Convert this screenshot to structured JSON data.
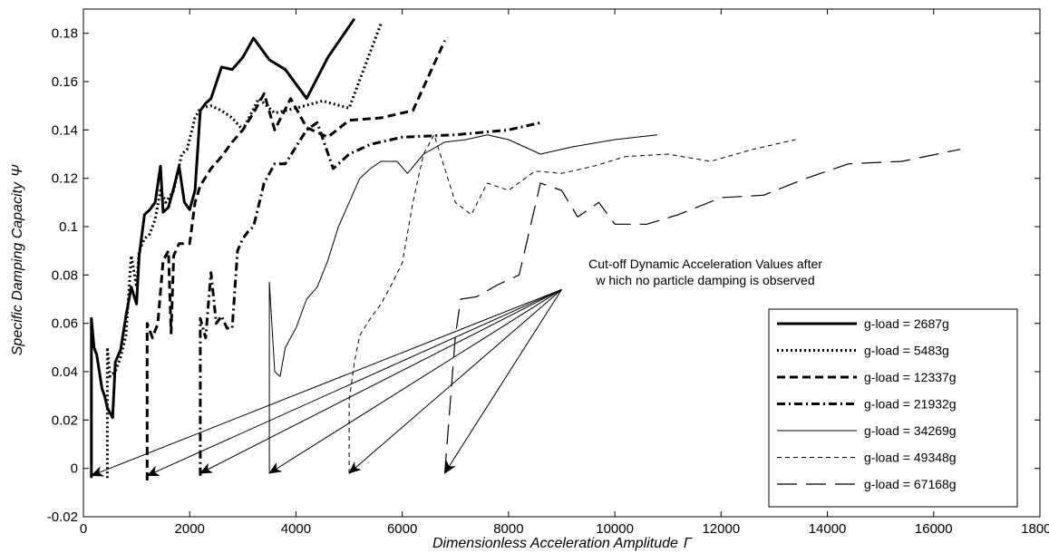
{
  "chart_data": {
    "type": "line",
    "xlabel": "Dimensionless Acceleration Amplitude",
    "xlabel_symbol": "Γ",
    "ylabel": "Specific Damping Capacity",
    "ylabel_symbol": "Ψ",
    "xlim": [
      0,
      18000
    ],
    "ylim": [
      -0.02,
      0.19
    ],
    "xticks": [
      0,
      2000,
      4000,
      6000,
      8000,
      10000,
      12000,
      14000,
      16000,
      18000
    ],
    "yticks": [
      -0.02,
      0,
      0.02,
      0.04,
      0.06,
      0.08,
      0.1,
      0.12,
      0.14,
      0.16,
      0.18
    ],
    "xtick_labels": [
      "0",
      "2000",
      "4000",
      "6000",
      "8000",
      "10000",
      "12000",
      "14000",
      "16000",
      "18000"
    ],
    "ytick_labels": [
      "-0.02",
      "0",
      "0.02",
      "0.04",
      "0.06",
      "0.08",
      "0.1",
      "0.12",
      "0.14",
      "0.16",
      "0.18"
    ],
    "grid": false,
    "legend_position": "bottom-right",
    "annotation": {
      "lines": [
        "Cut-off Dynamic Acceleration Values after",
        "w hich no particle damping is observed"
      ],
      "arrow_origin": [
        9000,
        0.074
      ],
      "arrow_targets": [
        [
          150,
          -0.003
        ],
        [
          1200,
          -0.003
        ],
        [
          2200,
          -0.002
        ],
        [
          3500,
          -0.002
        ],
        [
          5000,
          -0.002
        ],
        [
          6800,
          -0.002
        ]
      ]
    },
    "series": [
      {
        "name": "g-load = 2687g",
        "style": "thick-solid",
        "stroke": "#000000",
        "points": [
          [
            150,
            -0.004
          ],
          [
            150,
            0.062
          ],
          [
            200,
            0.05
          ],
          [
            250,
            0.047
          ],
          [
            300,
            0.04
          ],
          [
            350,
            0.033
          ],
          [
            400,
            0.03
          ],
          [
            450,
            0.025
          ],
          [
            500,
            0.023
          ],
          [
            550,
            0.021
          ],
          [
            600,
            0.044
          ],
          [
            700,
            0.049
          ],
          [
            800,
            0.063
          ],
          [
            900,
            0.075
          ],
          [
            1000,
            0.068
          ],
          [
            1050,
            0.088
          ],
          [
            1150,
            0.105
          ],
          [
            1250,
            0.107
          ],
          [
            1350,
            0.11
          ],
          [
            1450,
            0.125
          ],
          [
            1500,
            0.106
          ],
          [
            1600,
            0.108
          ],
          [
            1700,
            0.116
          ],
          [
            1800,
            0.125
          ],
          [
            1900,
            0.11
          ],
          [
            2000,
            0.107
          ],
          [
            2100,
            0.115
          ],
          [
            2200,
            0.148
          ],
          [
            2300,
            0.151
          ],
          [
            2400,
            0.153
          ],
          [
            2600,
            0.166
          ],
          [
            2800,
            0.165
          ],
          [
            3000,
            0.17
          ],
          [
            3200,
            0.178
          ],
          [
            3500,
            0.169
          ],
          [
            3800,
            0.165
          ],
          [
            4200,
            0.153
          ],
          [
            4600,
            0.17
          ],
          [
            5100,
            0.186
          ]
        ]
      },
      {
        "name": "g-load = 5483g",
        "style": "thick-dotted",
        "stroke": "#000000",
        "points": [
          [
            450,
            -0.004
          ],
          [
            450,
            0.05
          ],
          [
            500,
            0.038
          ],
          [
            600,
            0.04
          ],
          [
            700,
            0.046
          ],
          [
            800,
            0.055
          ],
          [
            900,
            0.088
          ],
          [
            1000,
            0.075
          ],
          [
            1050,
            0.09
          ],
          [
            1150,
            0.095
          ],
          [
            1250,
            0.097
          ],
          [
            1350,
            0.103
          ],
          [
            1450,
            0.115
          ],
          [
            1550,
            0.11
          ],
          [
            1700,
            0.115
          ],
          [
            1850,
            0.13
          ],
          [
            1950,
            0.132
          ],
          [
            2100,
            0.145
          ],
          [
            2200,
            0.149
          ],
          [
            2400,
            0.15
          ],
          [
            2600,
            0.148
          ],
          [
            2800,
            0.145
          ],
          [
            3000,
            0.14
          ],
          [
            3300,
            0.153
          ],
          [
            3600,
            0.147
          ],
          [
            4000,
            0.149
          ],
          [
            4500,
            0.152
          ],
          [
            5000,
            0.149
          ],
          [
            5600,
            0.184
          ]
        ]
      },
      {
        "name": "g-load = 12337g",
        "style": "thick-dashed",
        "stroke": "#000000",
        "points": [
          [
            1200,
            -0.005
          ],
          [
            1200,
            0.06
          ],
          [
            1300,
            0.054
          ],
          [
            1400,
            0.06
          ],
          [
            1500,
            0.086
          ],
          [
            1600,
            0.09
          ],
          [
            1650,
            0.056
          ],
          [
            1700,
            0.088
          ],
          [
            1800,
            0.093
          ],
          [
            2000,
            0.093
          ],
          [
            2100,
            0.11
          ],
          [
            2200,
            0.117
          ],
          [
            2400,
            0.124
          ],
          [
            2600,
            0.129
          ],
          [
            2800,
            0.135
          ],
          [
            3000,
            0.14
          ],
          [
            3200,
            0.147
          ],
          [
            3400,
            0.155
          ],
          [
            3600,
            0.14
          ],
          [
            3900,
            0.153
          ],
          [
            4200,
            0.141
          ],
          [
            4600,
            0.137
          ],
          [
            5000,
            0.144
          ],
          [
            5600,
            0.145
          ],
          [
            6200,
            0.148
          ],
          [
            6800,
            0.177
          ]
        ]
      },
      {
        "name": "g-load = 21932g",
        "style": "thick-dashdot",
        "stroke": "#000000",
        "points": [
          [
            2200,
            -0.003
          ],
          [
            2200,
            0.062
          ],
          [
            2300,
            0.054
          ],
          [
            2400,
            0.081
          ],
          [
            2500,
            0.06
          ],
          [
            2600,
            0.063
          ],
          [
            2700,
            0.058
          ],
          [
            2800,
            0.058
          ],
          [
            2900,
            0.09
          ],
          [
            3000,
            0.095
          ],
          [
            3100,
            0.098
          ],
          [
            3200,
            0.1
          ],
          [
            3400,
            0.118
          ],
          [
            3600,
            0.126
          ],
          [
            3800,
            0.126
          ],
          [
            4000,
            0.133
          ],
          [
            4200,
            0.14
          ],
          [
            4400,
            0.143
          ],
          [
            4700,
            0.124
          ],
          [
            5000,
            0.13
          ],
          [
            5400,
            0.134
          ],
          [
            6000,
            0.137
          ],
          [
            7000,
            0.138
          ],
          [
            8000,
            0.14
          ],
          [
            8600,
            0.143
          ]
        ]
      },
      {
        "name": "g-load = 34269g",
        "style": "thin-solid",
        "stroke": "#000000",
        "points": [
          [
            3500,
            -0.002
          ],
          [
            3500,
            0.077
          ],
          [
            3600,
            0.04
          ],
          [
            3700,
            0.038
          ],
          [
            3800,
            0.05
          ],
          [
            4000,
            0.058
          ],
          [
            4200,
            0.07
          ],
          [
            4400,
            0.075
          ],
          [
            4600,
            0.086
          ],
          [
            4800,
            0.1
          ],
          [
            5000,
            0.11
          ],
          [
            5200,
            0.12
          ],
          [
            5400,
            0.124
          ],
          [
            5600,
            0.127
          ],
          [
            5900,
            0.127
          ],
          [
            6100,
            0.122
          ],
          [
            6400,
            0.13
          ],
          [
            6800,
            0.135
          ],
          [
            7200,
            0.136
          ],
          [
            7600,
            0.138
          ],
          [
            8000,
            0.136
          ],
          [
            8600,
            0.13
          ],
          [
            9200,
            0.133
          ],
          [
            10000,
            0.136
          ],
          [
            10800,
            0.138
          ]
        ]
      },
      {
        "name": "g-load = 49348g",
        "style": "thin-dashed",
        "stroke": "#000000",
        "points": [
          [
            5000,
            -0.002
          ],
          [
            5000,
            0.028
          ],
          [
            5100,
            0.044
          ],
          [
            5200,
            0.055
          ],
          [
            5400,
            0.062
          ],
          [
            5600,
            0.068
          ],
          [
            5800,
            0.076
          ],
          [
            6000,
            0.085
          ],
          [
            6200,
            0.11
          ],
          [
            6400,
            0.13
          ],
          [
            6600,
            0.138
          ],
          [
            7000,
            0.11
          ],
          [
            7300,
            0.105
          ],
          [
            7600,
            0.118
          ],
          [
            8000,
            0.115
          ],
          [
            8500,
            0.123
          ],
          [
            9000,
            0.122
          ],
          [
            9600,
            0.125
          ],
          [
            10200,
            0.129
          ],
          [
            11000,
            0.13
          ],
          [
            11800,
            0.127
          ],
          [
            12600,
            0.132
          ],
          [
            13400,
            0.136
          ]
        ]
      },
      {
        "name": "g-load = 67168g",
        "style": "thin-longdash",
        "stroke": "#000000",
        "points": [
          [
            6800,
            -0.002
          ],
          [
            7000,
            0.055
          ],
          [
            7100,
            0.07
          ],
          [
            7400,
            0.071
          ],
          [
            7800,
            0.076
          ],
          [
            8200,
            0.08
          ],
          [
            8600,
            0.118
          ],
          [
            9000,
            0.115
          ],
          [
            9300,
            0.104
          ],
          [
            9700,
            0.11
          ],
          [
            10000,
            0.101
          ],
          [
            10600,
            0.101
          ],
          [
            11200,
            0.105
          ],
          [
            12000,
            0.112
          ],
          [
            12800,
            0.113
          ],
          [
            13600,
            0.12
          ],
          [
            14400,
            0.126
          ],
          [
            15400,
            0.127
          ],
          [
            16500,
            0.132
          ]
        ]
      }
    ]
  }
}
